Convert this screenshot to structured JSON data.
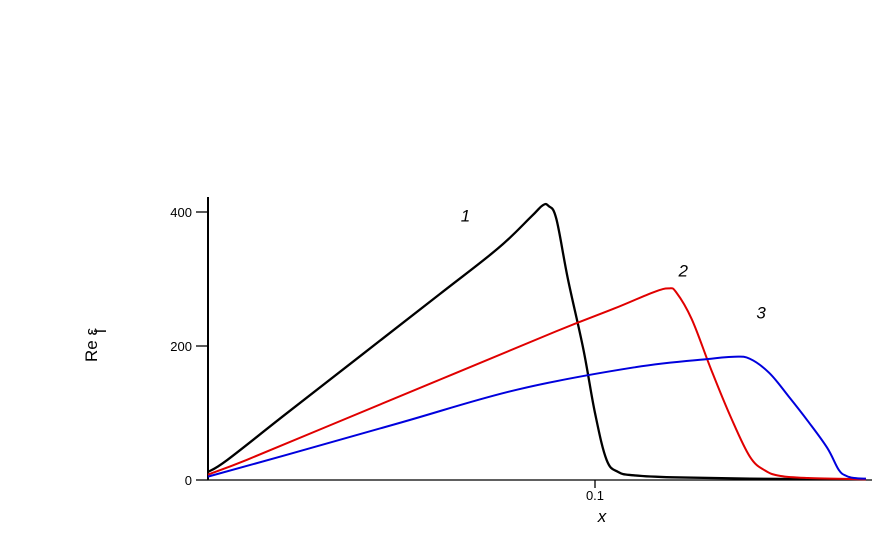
{
  "chart_data": {
    "type": "line",
    "xlabel": "x",
    "ylabel": "Re ε",
    "ylabel_subscript": "l",
    "ylim": [
      0,
      400
    ],
    "x_ticks": [
      {
        "value": 0.1,
        "label": "0.1"
      }
    ],
    "y_ticks": [
      {
        "value": 0,
        "label": "0"
      },
      {
        "value": 200,
        "label": "200"
      },
      {
        "value": 400,
        "label": "400"
      }
    ],
    "grid": false,
    "series": [
      {
        "name": "1",
        "color": "#000000",
        "x": [
          0.0,
          0.005,
          0.02,
          0.04,
          0.06,
          0.075,
          0.0835,
          0.0865,
          0.088,
          0.09,
          0.093,
          0.097,
          0.1,
          0.103,
          0.106,
          0.11,
          0.12,
          0.14,
          0.17
        ],
        "y": [
          12,
          30,
          98,
          188,
          278,
          346,
          393,
          410,
          409,
          390,
          300,
          195,
          100,
          30,
          12,
          7,
          4,
          2,
          1
        ]
      },
      {
        "name": "2",
        "color": "#e00000",
        "x": [
          0.0,
          0.01,
          0.03,
          0.06,
          0.09,
          0.105,
          0.115,
          0.119,
          0.121,
          0.125,
          0.13,
          0.135,
          0.14,
          0.144,
          0.148,
          0.155,
          0.17
        ],
        "y": [
          8,
          30,
          78,
          150,
          222,
          256,
          280,
          286,
          280,
          240,
          165,
          95,
          35,
          14,
          6,
          3,
          1
        ]
      },
      {
        "name": "3",
        "color": "#0000dd",
        "x": [
          0.0,
          0.02,
          0.05,
          0.08,
          0.11,
          0.13,
          0.136,
          0.14,
          0.145,
          0.15,
          0.155,
          0.16,
          0.163,
          0.165,
          0.167,
          0.17
        ],
        "y": [
          5,
          37,
          86,
          135,
          168,
          181,
          184,
          181,
          160,
          125,
          88,
          48,
          15,
          6,
          3,
          2
        ]
      }
    ]
  }
}
